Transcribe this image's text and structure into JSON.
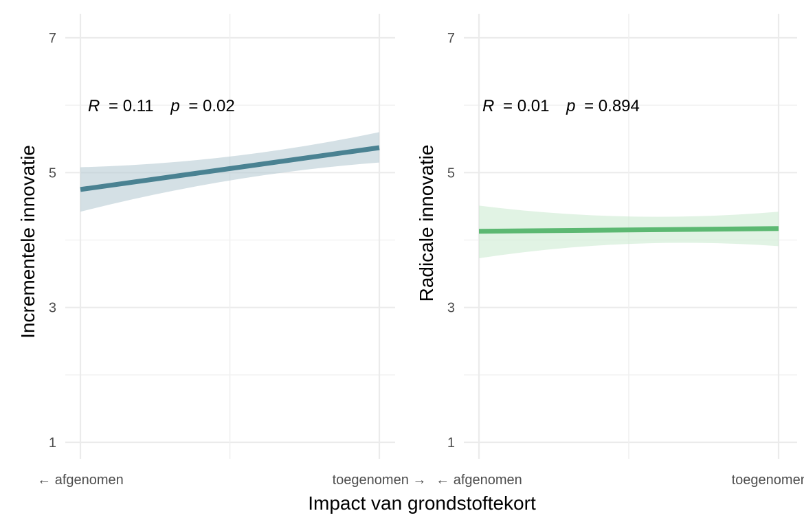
{
  "figure": {
    "xlabel": "Impact van grondstoftekort"
  },
  "chart_data": [
    {
      "type": "line",
      "panel": "left",
      "x_ticks": [
        "← afgenomen",
        "toegenomen →"
      ],
      "ylabel": "Incrementele innovatie",
      "ylim": [
        1,
        7
      ],
      "y_ticks": [
        1,
        3,
        5,
        7
      ],
      "grid": true,
      "annotation": {
        "r_label": "R",
        "r_value": "= 0.11",
        "p_label": "p",
        "p_value": "= 0.02"
      },
      "series": [
        {
          "color": "#4a8292",
          "ribbon_color": "#b7cbd4",
          "x": [
            0,
            1
          ],
          "y": [
            4.75,
            5.37
          ],
          "ci_lower": [
            4.42,
            5.15
          ],
          "ci_upper": [
            5.08,
            5.6
          ]
        }
      ]
    },
    {
      "type": "line",
      "panel": "right",
      "x_ticks": [
        "← afgenomen",
        "toegenomen →"
      ],
      "ylabel": "Radicale innovatie",
      "ylim": [
        1,
        7
      ],
      "y_ticks": [
        1,
        3,
        5,
        7
      ],
      "grid": true,
      "annotation": {
        "r_label": "R",
        "r_value": "= 0.01",
        "p_label": "p",
        "p_value": "= 0.894"
      },
      "series": [
        {
          "color": "#5cb872",
          "ribbon_color": "#cdebd2",
          "x": [
            0,
            1
          ],
          "y": [
            4.13,
            4.17
          ],
          "ci_lower": [
            3.73,
            3.91
          ],
          "ci_upper": [
            4.51,
            4.42
          ]
        }
      ]
    }
  ]
}
